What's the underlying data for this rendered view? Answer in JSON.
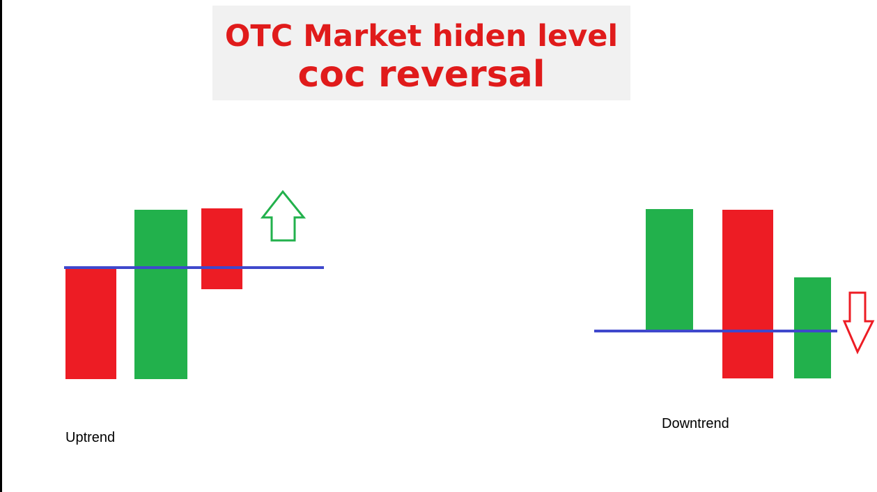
{
  "title": {
    "line1": "OTC Market hiden level",
    "line2": "coc reversal"
  },
  "labels": {
    "uptrend": "Uptrend",
    "downtrend": "Downtrend"
  },
  "colors": {
    "title_text": "#e01b1b",
    "candle_red": "#ed1c24",
    "candle_green": "#22b14c",
    "level_line": "#3f48cc",
    "arrow_up": "#22b14c",
    "arrow_down": "#ed1c24"
  },
  "icons": {
    "up": "up-arrow-icon",
    "down": "down-arrow-icon"
  }
}
